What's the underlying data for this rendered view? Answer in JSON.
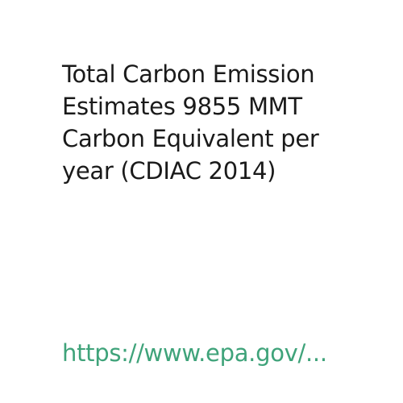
{
  "headline_lines": [
    "Total Carbon Emission",
    "Estimates 9855 MMT",
    "Carbon Equivalent per",
    "year (CDIAC 2014)"
  ],
  "source_link": "https://www.epa.gov/...",
  "colors": {
    "background": "#ffffff",
    "text": "#1a1a1a",
    "link": "#3fa37a"
  }
}
